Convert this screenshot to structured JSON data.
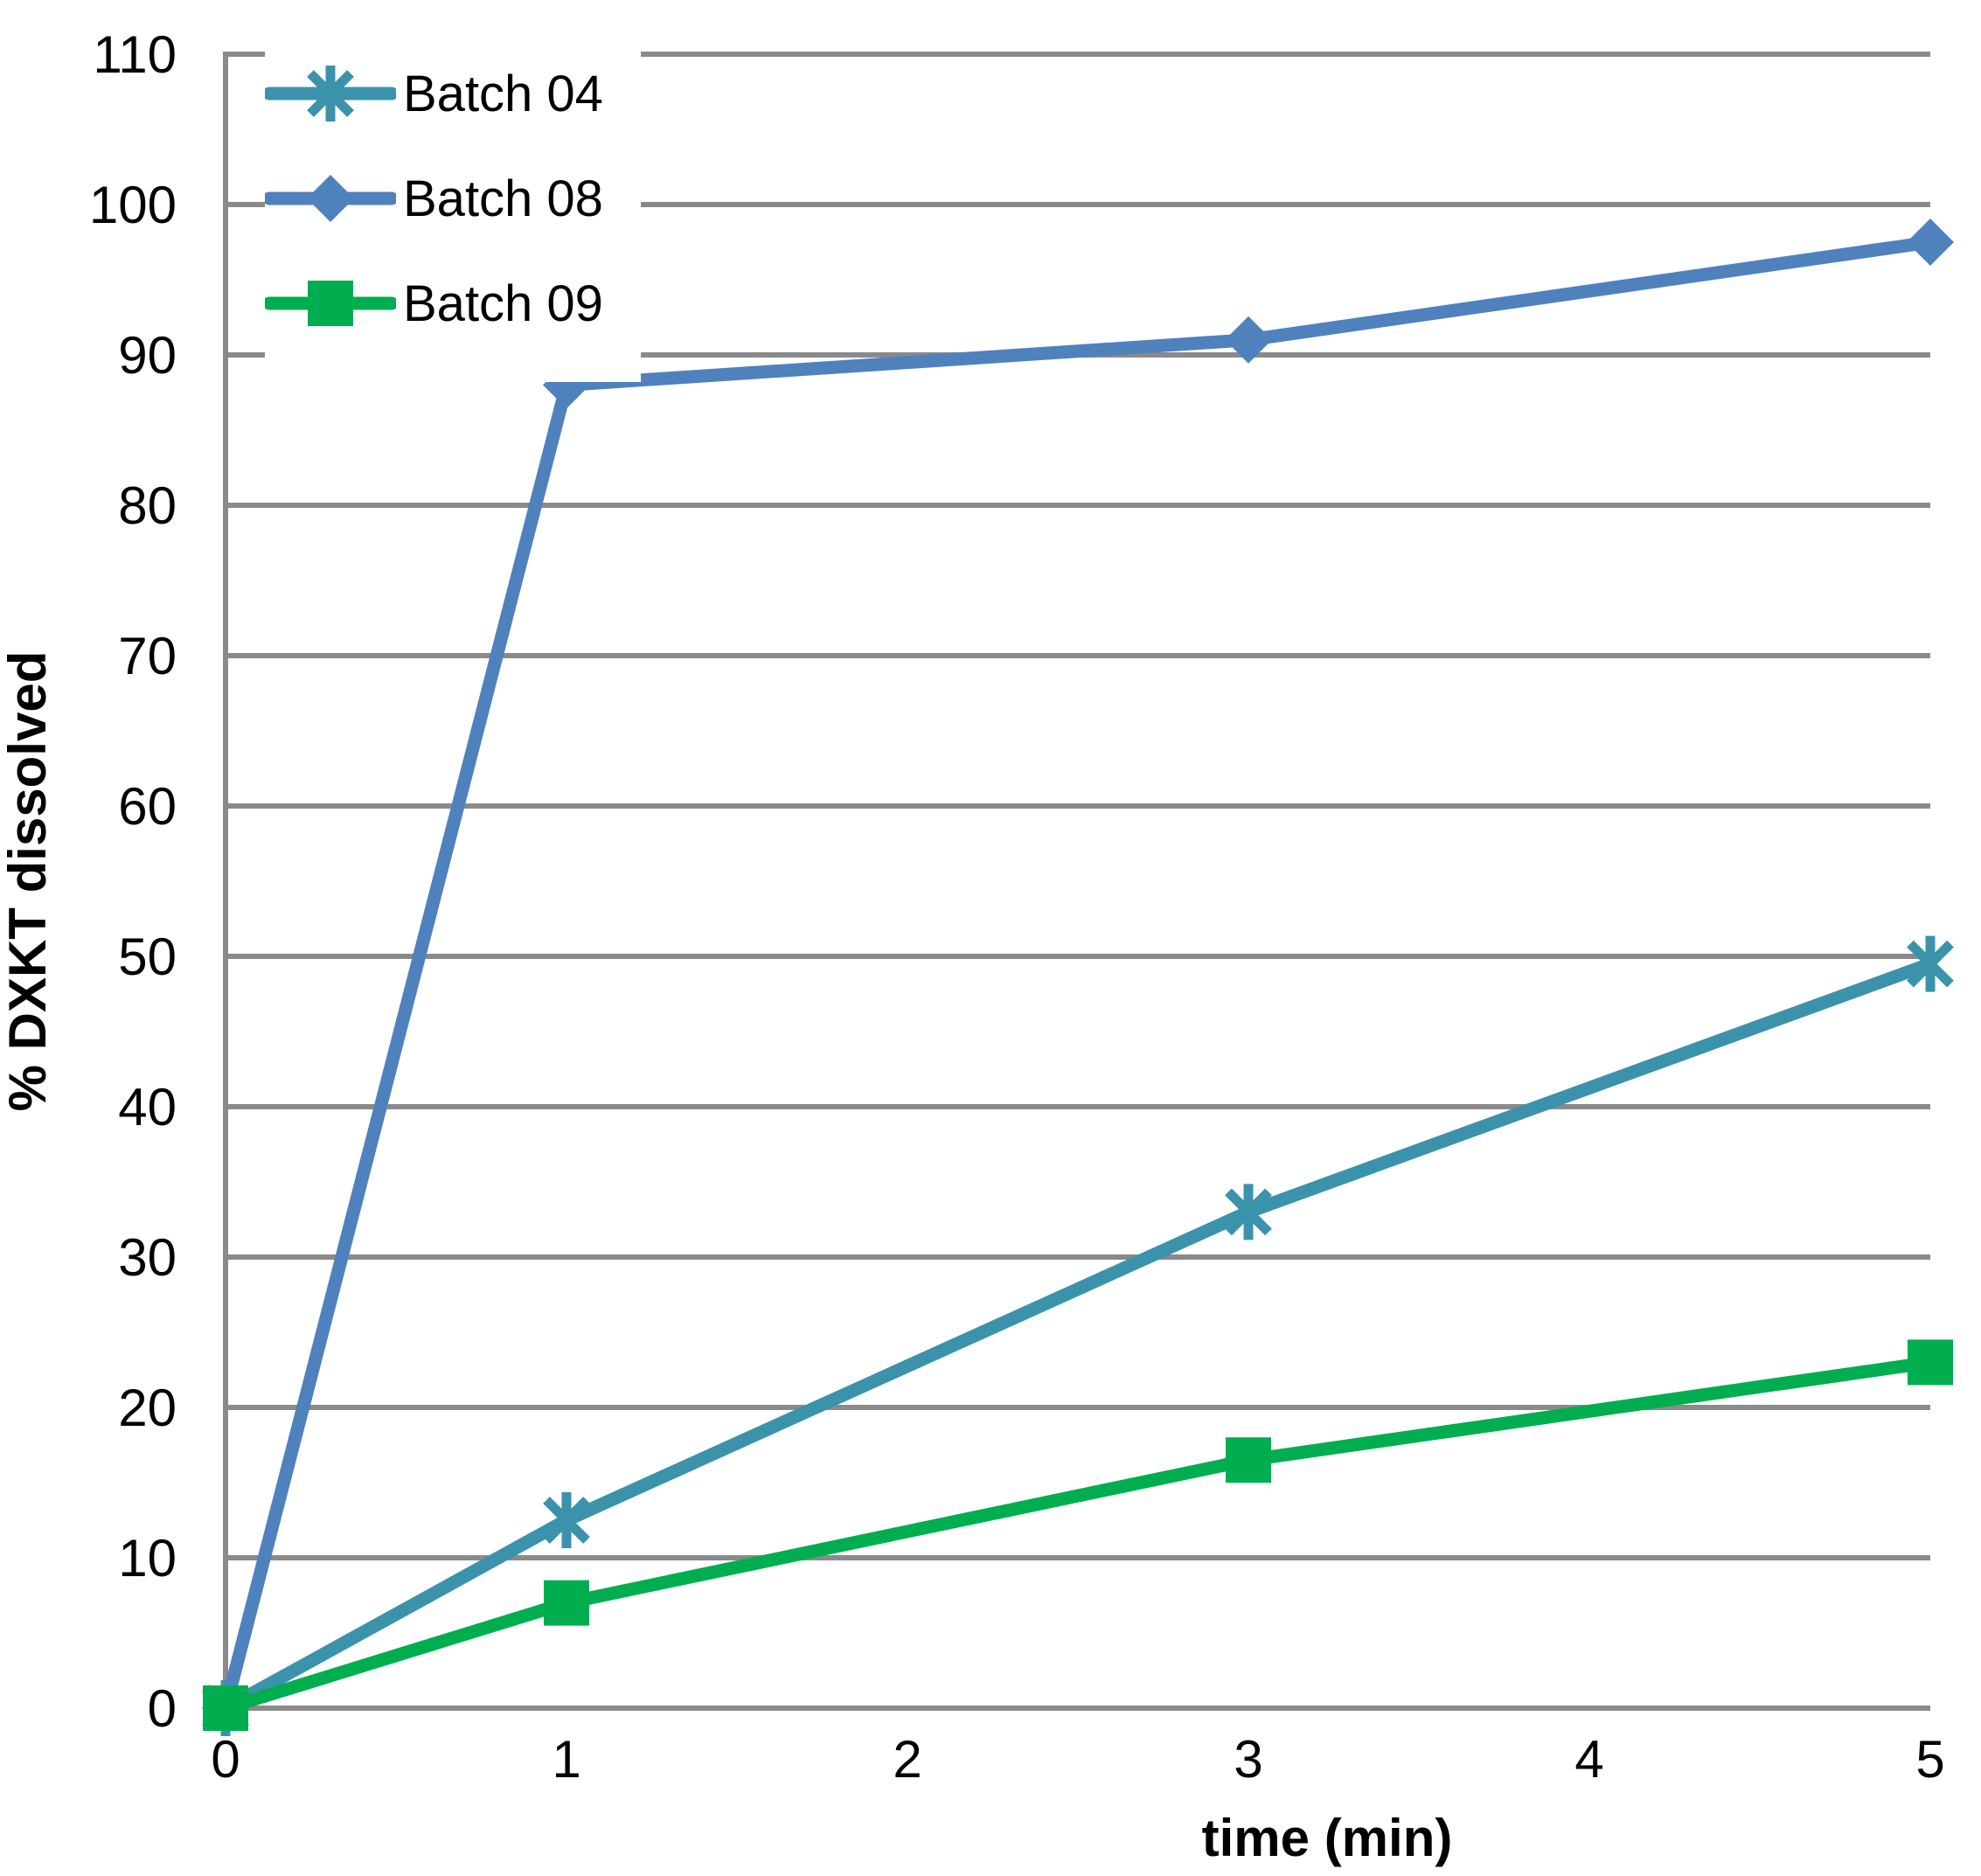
{
  "chart_data": {
    "type": "line",
    "title": "",
    "xlabel": "time (min)",
    "ylabel": "% DXKT dissolved",
    "x": [
      0,
      1,
      3,
      5
    ],
    "series": [
      {
        "name": "Batch 04",
        "marker": "asterisk",
        "color": "#3B93AB",
        "values": [
          0,
          12.5,
          33,
          49.5
        ]
      },
      {
        "name": "Batch 08",
        "marker": "diamond",
        "color": "#4F81BD",
        "values": [
          0,
          88,
          91,
          97.5
        ]
      },
      {
        "name": "Batch 09",
        "marker": "square",
        "color": "#00AE4F",
        "values": [
          0,
          7,
          16.5,
          23
        ]
      }
    ],
    "xlim": [
      0,
      5
    ],
    "ylim": [
      0,
      110
    ],
    "x_ticks": [
      0,
      1,
      2,
      3,
      4,
      5
    ],
    "y_ticks": [
      0,
      10,
      20,
      30,
      40,
      50,
      60,
      70,
      80,
      90,
      100,
      110
    ],
    "grid": "horizontal",
    "gridline_color": "#8A8A8A",
    "axis_color": "#8A8A8A",
    "background_color": "#FFFFFF",
    "text_color": "#000000",
    "legend_position": "top-left"
  }
}
